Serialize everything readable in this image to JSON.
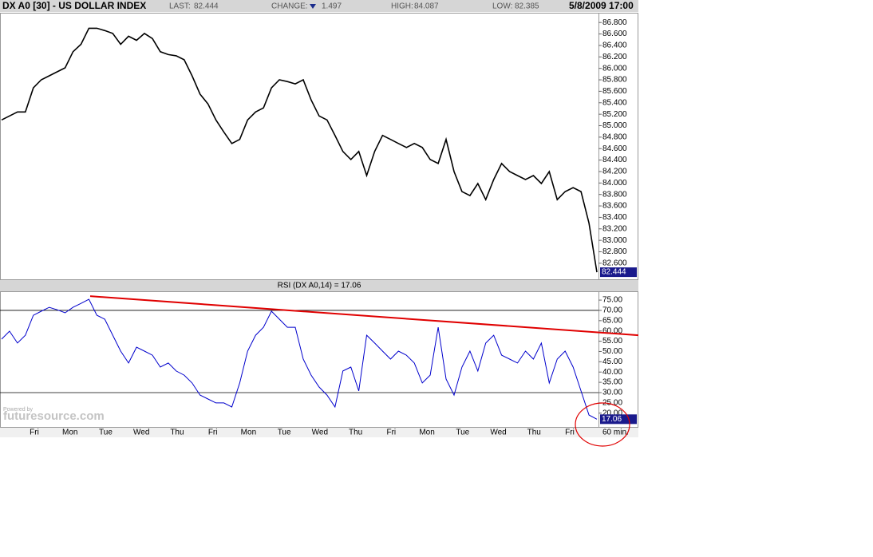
{
  "header": {
    "symbol": "DX A0 [30] - US DOLLAR INDEX",
    "last_label": "LAST:",
    "last": 82.444,
    "change_label": "CHANGE:",
    "change": 1.497,
    "high_label": "HIGH:",
    "high": 84.087,
    "low_label": "LOW:",
    "low": 82.385,
    "datetime": "5/8/2009 17:00"
  },
  "x_axis": {
    "labels": [
      "Fri",
      "Mon",
      "Tue",
      "Wed",
      "Thu",
      "Fri",
      "Mon",
      "Tue",
      "Wed",
      "Thu",
      "Fri",
      "Mon",
      "Tue",
      "Wed",
      "Thu",
      "Fri"
    ],
    "interval": "60 min."
  },
  "watermark": {
    "small": "Powered by",
    "brand": "futuresource.com"
  },
  "chart_data": [
    {
      "type": "line",
      "color": "#000000",
      "values": [
        85.1,
        85.17,
        85.24,
        85.24,
        85.66,
        85.8,
        85.87,
        85.94,
        86.01,
        86.29,
        86.42,
        86.7,
        86.7,
        86.66,
        86.61,
        86.42,
        86.56,
        86.49,
        86.61,
        86.52,
        86.29,
        86.24,
        86.22,
        86.15,
        85.87,
        85.55,
        85.38,
        85.1,
        84.89,
        84.69,
        84.76,
        85.1,
        85.24,
        85.31,
        85.66,
        85.8,
        85.77,
        85.73,
        85.8,
        85.45,
        85.17,
        85.1,
        84.83,
        84.55,
        84.41,
        84.55,
        84.13,
        84.55,
        84.83,
        84.76,
        84.69,
        84.62,
        84.69,
        84.62,
        84.41,
        84.34,
        84.76,
        84.2,
        83.85,
        83.78,
        83.99,
        83.71,
        84.06,
        84.34,
        84.2,
        84.13,
        84.06,
        84.13,
        83.99,
        84.2,
        83.71,
        83.85,
        83.92,
        83.85,
        83.3,
        82.444
      ],
      "ylim": [
        82.32,
        86.97
      ],
      "yticks": [
        {
          "value": 82.6,
          "label": "82.600"
        },
        {
          "value": 82.8,
          "label": "82.800"
        },
        {
          "value": 83.0,
          "label": "83.000"
        },
        {
          "value": 83.2,
          "label": "83.200"
        },
        {
          "value": 83.4,
          "label": "83.400"
        },
        {
          "value": 83.6,
          "label": "83.600"
        },
        {
          "value": 83.8,
          "label": "83.800"
        },
        {
          "value": 84.0,
          "label": "84.000"
        },
        {
          "value": 84.2,
          "label": "84.200"
        },
        {
          "value": 84.4,
          "label": "84.400"
        },
        {
          "value": 84.6,
          "label": "84.600"
        },
        {
          "value": 84.8,
          "label": "84.800"
        },
        {
          "value": 85.0,
          "label": "85.000"
        },
        {
          "value": 85.2,
          "label": "85.200"
        },
        {
          "value": 85.4,
          "label": "85.400"
        },
        {
          "value": 85.6,
          "label": "85.600"
        },
        {
          "value": 85.8,
          "label": "85.800"
        },
        {
          "value": 86.0,
          "label": "86.000"
        },
        {
          "value": 86.2,
          "label": "86.200"
        },
        {
          "value": 86.4,
          "label": "86.400"
        },
        {
          "value": 86.6,
          "label": "86.600"
        },
        {
          "value": 86.8,
          "label": "86.800"
        }
      ]
    },
    {
      "type": "line",
      "title": "RSI (DX A0,14) = 17.06",
      "color": "#0000cc",
      "values": [
        56.0,
        59.9,
        54.1,
        57.9,
        67.6,
        69.6,
        71.5,
        70.3,
        68.8,
        71.5,
        73.4,
        75.4,
        67.6,
        65.7,
        57.9,
        50.2,
        44.4,
        52.1,
        50.2,
        48.2,
        42.4,
        44.4,
        40.5,
        38.5,
        34.7,
        28.8,
        26.9,
        25.0,
        25.0,
        23.0,
        34.7,
        50.2,
        57.9,
        61.8,
        69.6,
        65.7,
        61.8,
        61.8,
        46.3,
        38.5,
        32.7,
        28.8,
        23.0,
        40.5,
        42.4,
        30.8,
        57.9,
        54.1,
        50.2,
        46.3,
        50.2,
        48.2,
        44.4,
        34.7,
        38.5,
        61.8,
        36.6,
        28.8,
        42.4,
        50.2,
        40.5,
        54.1,
        57.9,
        48.2,
        46.3,
        44.4,
        50.2,
        46.3,
        54.1,
        34.7,
        46.3,
        50.2,
        42.4,
        30.8,
        19.1,
        17.06
      ],
      "ylim": [
        13.3,
        79.3
      ],
      "yticks": [
        {
          "value": 20,
          "label": "20.00"
        },
        {
          "value": 25,
          "label": "25.00"
        },
        {
          "value": 30,
          "label": "30.00"
        },
        {
          "value": 35,
          "label": "35.00"
        },
        {
          "value": 40,
          "label": "40.00"
        },
        {
          "value": 45,
          "label": "45.00"
        },
        {
          "value": 50,
          "label": "50.00"
        },
        {
          "value": 55,
          "label": "55.00"
        },
        {
          "value": 60,
          "label": "60.00"
        },
        {
          "value": 65,
          "label": "65.00"
        },
        {
          "value": 70,
          "label": "70.00"
        },
        {
          "value": 75,
          "label": "75.00"
        }
      ],
      "hlines": [
        70,
        30
      ],
      "trendline": {
        "color": "#e00000",
        "values": [
          76.9,
          57.9
        ]
      }
    }
  ]
}
